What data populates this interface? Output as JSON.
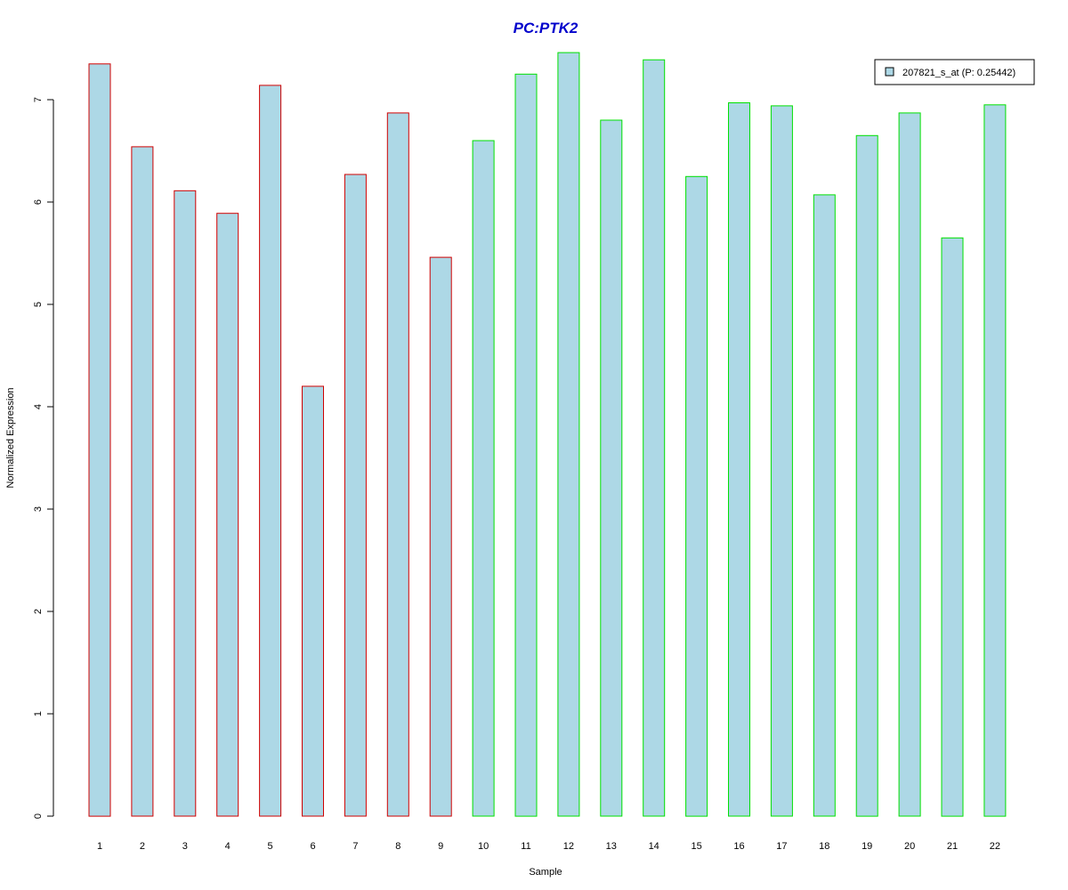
{
  "chart_data": {
    "type": "bar",
    "title": "PC:PTK2",
    "xlabel": "Sample",
    "ylabel": "Normalized Expression",
    "categories": [
      "1",
      "2",
      "3",
      "4",
      "5",
      "6",
      "7",
      "8",
      "9",
      "10",
      "11",
      "12",
      "13",
      "14",
      "15",
      "16",
      "17",
      "18",
      "19",
      "20",
      "21",
      "22"
    ],
    "series": [
      {
        "name": "207821_s_at (P: 0.25442)",
        "values": [
          7.35,
          6.54,
          6.11,
          5.89,
          7.14,
          4.2,
          6.27,
          6.87,
          5.46,
          6.6,
          7.25,
          7.46,
          6.8,
          7.39,
          6.25,
          6.97,
          6.94,
          6.07,
          6.65,
          6.87,
          5.65,
          6.95
        ]
      }
    ],
    "group_colors": [
      "#d00000",
      "#d00000",
      "#d00000",
      "#d00000",
      "#d00000",
      "#d00000",
      "#d00000",
      "#d00000",
      "#d00000",
      "#00e000",
      "#00e000",
      "#00e000",
      "#00e000",
      "#00e000",
      "#00e000",
      "#00e000",
      "#00e000",
      "#00e000",
      "#00e000",
      "#00e000",
      "#00e000",
      "#00e000"
    ],
    "fill_color": "#add8e6",
    "title_color": "#0000cc",
    "yticks": [
      0,
      1,
      2,
      3,
      4,
      5,
      6,
      7
    ],
    "ylim": [
      0,
      7.46
    ],
    "grid": false,
    "legend_position": "top-right"
  }
}
